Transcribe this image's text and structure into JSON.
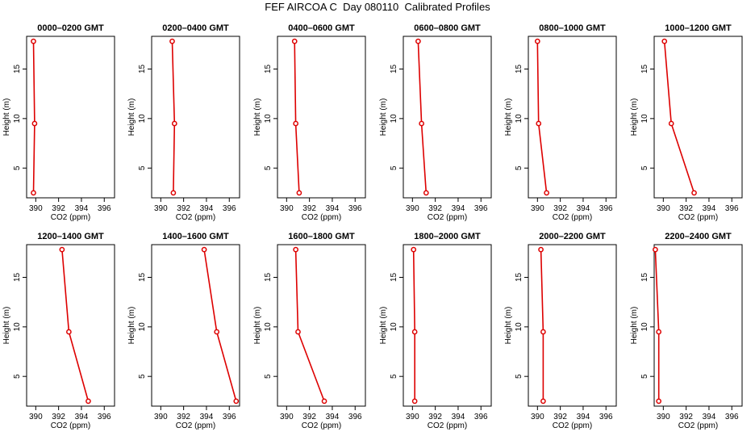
{
  "title": "FEF AIRCOA C  Day 080110  Calibrated Profiles",
  "axis": {
    "xlabel": "CO2 (ppm)",
    "ylabel": "Height (m)"
  },
  "colors": {
    "line": "#dd0000",
    "frame": "#000000"
  },
  "chart_data": [
    {
      "type": "line",
      "title": "0000–0200 GMT",
      "x": [
        389.8,
        389.9,
        389.8
      ],
      "y": [
        2.5,
        9.5,
        17.8
      ],
      "xlim": [
        389.2,
        396.9
      ],
      "ylim": [
        2.0,
        18.3
      ],
      "xticks": [
        "390",
        "392",
        "394",
        "396"
      ],
      "yticks": [
        "5",
        "10",
        "15"
      ]
    },
    {
      "type": "line",
      "title": "0200–0400 GMT",
      "x": [
        391.1,
        391.2,
        391.0
      ],
      "y": [
        2.5,
        9.5,
        17.8
      ],
      "xlim": [
        389.2,
        396.9
      ],
      "ylim": [
        2.0,
        18.3
      ],
      "xticks": [
        "390",
        "392",
        "394",
        "396"
      ],
      "yticks": [
        "5",
        "10",
        "15"
      ]
    },
    {
      "type": "line",
      "title": "0400–0600 GMT",
      "x": [
        391.1,
        390.8,
        390.7
      ],
      "y": [
        2.5,
        9.5,
        17.8
      ],
      "xlim": [
        389.2,
        396.9
      ],
      "ylim": [
        2.0,
        18.3
      ],
      "xticks": [
        "390",
        "392",
        "394",
        "396"
      ],
      "yticks": [
        "5",
        "10",
        "15"
      ]
    },
    {
      "type": "line",
      "title": "0600–0800 GMT",
      "x": [
        391.2,
        390.8,
        390.5
      ],
      "y": [
        2.5,
        9.5,
        17.8
      ],
      "xlim": [
        389.2,
        396.9
      ],
      "ylim": [
        2.0,
        18.3
      ],
      "xticks": [
        "390",
        "392",
        "394",
        "396"
      ],
      "yticks": [
        "5",
        "10",
        "15"
      ]
    },
    {
      "type": "line",
      "title": "0800–1000 GMT",
      "x": [
        390.8,
        390.1,
        390.0
      ],
      "y": [
        2.5,
        9.5,
        17.8
      ],
      "xlim": [
        389.2,
        396.9
      ],
      "ylim": [
        2.0,
        18.3
      ],
      "xticks": [
        "390",
        "392",
        "394",
        "396"
      ],
      "yticks": [
        "5",
        "10",
        "15"
      ]
    },
    {
      "type": "line",
      "title": "1000–1200 GMT",
      "x": [
        392.7,
        390.7,
        390.1
      ],
      "y": [
        2.5,
        9.5,
        17.8
      ],
      "xlim": [
        389.2,
        396.9
      ],
      "ylim": [
        2.0,
        18.3
      ],
      "xticks": [
        "390",
        "392",
        "394",
        "396"
      ],
      "yticks": [
        "5",
        "10",
        "15"
      ]
    },
    {
      "type": "line",
      "title": "1200–1400 GMT",
      "x": [
        394.6,
        392.9,
        392.3
      ],
      "y": [
        2.5,
        9.5,
        17.8
      ],
      "xlim": [
        389.2,
        396.9
      ],
      "ylim": [
        2.0,
        18.3
      ],
      "xticks": [
        "390",
        "392",
        "394",
        "396"
      ],
      "yticks": [
        "5",
        "10",
        "15"
      ]
    },
    {
      "type": "line",
      "title": "1400–1600 GMT",
      "x": [
        396.6,
        394.9,
        393.8
      ],
      "y": [
        2.5,
        9.5,
        17.8
      ],
      "xlim": [
        389.2,
        396.9
      ],
      "ylim": [
        2.0,
        18.3
      ],
      "xticks": [
        "390",
        "392",
        "394",
        "396"
      ],
      "yticks": [
        "5",
        "10",
        "15"
      ]
    },
    {
      "type": "line",
      "title": "1600–1800 GMT",
      "x": [
        393.3,
        391.0,
        390.8
      ],
      "y": [
        2.5,
        9.5,
        17.8
      ],
      "xlim": [
        389.2,
        396.9
      ],
      "ylim": [
        2.0,
        18.3
      ],
      "xticks": [
        "390",
        "392",
        "394",
        "396"
      ],
      "yticks": [
        "5",
        "10",
        "15"
      ]
    },
    {
      "type": "line",
      "title": "1800–2000 GMT",
      "x": [
        390.2,
        390.2,
        390.1
      ],
      "y": [
        2.5,
        9.5,
        17.8
      ],
      "xlim": [
        389.2,
        396.9
      ],
      "ylim": [
        2.0,
        18.3
      ],
      "xticks": [
        "390",
        "392",
        "394",
        "396"
      ],
      "yticks": [
        "5",
        "10",
        "15"
      ]
    },
    {
      "type": "line",
      "title": "2000–2200 GMT",
      "x": [
        390.5,
        390.5,
        390.3
      ],
      "y": [
        2.5,
        9.5,
        17.8
      ],
      "xlim": [
        389.2,
        396.9
      ],
      "ylim": [
        2.0,
        18.3
      ],
      "xticks": [
        "390",
        "392",
        "394",
        "396"
      ],
      "yticks": [
        "5",
        "10",
        "15"
      ]
    },
    {
      "type": "line",
      "title": "2200–2400 GMT",
      "x": [
        389.6,
        389.6,
        389.3
      ],
      "y": [
        2.5,
        9.5,
        17.8
      ],
      "xlim": [
        389.2,
        396.9
      ],
      "ylim": [
        2.0,
        18.3
      ],
      "xticks": [
        "390",
        "392",
        "394",
        "396"
      ],
      "yticks": [
        "5",
        "10",
        "15"
      ]
    }
  ]
}
